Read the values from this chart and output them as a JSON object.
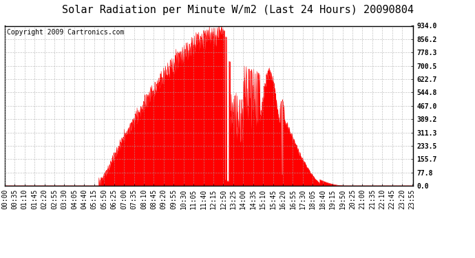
{
  "title": "Solar Radiation per Minute W/m2 (Last 24 Hours) 20090804",
  "copyright": "Copyright 2009 Cartronics.com",
  "y_ticks": [
    0.0,
    77.8,
    155.7,
    233.5,
    311.3,
    389.2,
    467.0,
    544.8,
    622.7,
    700.5,
    778.3,
    856.2,
    934.0
  ],
  "y_max": 934.0,
  "y_min": 0.0,
  "fill_color": "#FF0000",
  "line_color": "#FF0000",
  "bg_color": "#FFFFFF",
  "plot_bg_color": "#FFFFFF",
  "grid_color": "#AAAAAA",
  "dashed_line_color": "#FF0000",
  "title_fontsize": 11,
  "copyright_fontsize": 7,
  "tick_fontsize": 7,
  "sunrise_min": 330,
  "sunset_min": 1200,
  "solar_noon_min": 770,
  "peak_value": 934.0,
  "time_labels": [
    "00:00",
    "00:35",
    "01:10",
    "01:45",
    "02:20",
    "02:55",
    "03:30",
    "04:05",
    "04:40",
    "05:15",
    "05:50",
    "06:25",
    "07:00",
    "07:35",
    "08:10",
    "08:45",
    "09:20",
    "09:55",
    "10:30",
    "11:05",
    "11:40",
    "12:15",
    "12:50",
    "13:25",
    "14:00",
    "14:35",
    "15:10",
    "15:45",
    "16:20",
    "16:55",
    "17:30",
    "18:05",
    "18:40",
    "19:15",
    "19:50",
    "20:25",
    "21:00",
    "21:35",
    "22:10",
    "22:45",
    "23:20",
    "23:55"
  ]
}
